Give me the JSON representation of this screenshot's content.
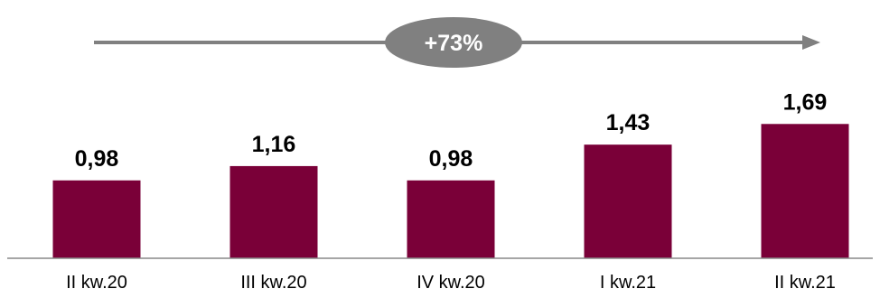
{
  "chart_data": {
    "type": "bar",
    "categories": [
      "II kw.20",
      "III kw.20",
      "IV kw.20",
      "I kw.21",
      "II kw.21"
    ],
    "values": [
      0.98,
      1.16,
      0.98,
      1.43,
      1.69
    ],
    "value_labels": [
      "0,98",
      "1,16",
      "0,98",
      "1,43",
      "1,69"
    ],
    "annotation": "+73%",
    "grid": false,
    "colors": {
      "bar": "#7a0038",
      "arrow": "#808080",
      "badge": "#808080",
      "badge_text": "#ffffff",
      "axis": "#888888"
    }
  }
}
